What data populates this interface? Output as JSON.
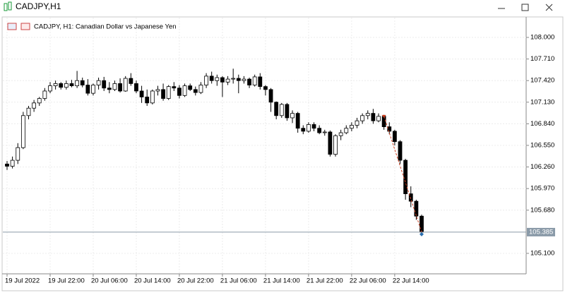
{
  "window": {
    "title": "CADJPY,H1"
  },
  "chart_data": {
    "type": "candlestick",
    "title": "CADJPY, H1:  Canadian Dollar vs Japanese Yen",
    "categories": [
      "19 Jul 2022",
      null,
      null,
      null,
      null,
      null,
      null,
      null,
      "19 Jul 22:00",
      null,
      null,
      null,
      null,
      null,
      null,
      null,
      "20 Jul 06:00",
      null,
      null,
      null,
      null,
      null,
      null,
      null,
      "20 Jul 14:00",
      null,
      null,
      null,
      null,
      null,
      null,
      null,
      "20 Jul 22:00",
      null,
      null,
      null,
      null,
      null,
      null,
      null,
      "21 Jul 06:00",
      null,
      null,
      null,
      null,
      null,
      null,
      null,
      "21 Jul 14:00",
      null,
      null,
      null,
      null,
      null,
      null,
      null,
      "21 Jul 22:00",
      null,
      null,
      null,
      null,
      null,
      null,
      null,
      "22 Jul 06:00",
      null,
      null,
      null,
      null,
      null,
      null,
      null,
      "22 Jul 14:00",
      null,
      null,
      null,
      null,
      null
    ],
    "open": [
      106.3,
      106.27,
      106.35,
      106.52,
      106.95,
      107.05,
      107.12,
      107.18,
      107.28,
      107.35,
      107.38,
      107.33,
      107.38,
      107.35,
      107.42,
      107.36,
      107.25,
      107.36,
      107.42,
      107.32,
      107.3,
      107.38,
      107.28,
      107.45,
      107.38,
      107.28,
      107.2,
      107.12,
      107.28,
      107.3,
      107.18,
      107.34,
      107.32,
      107.22,
      107.35,
      107.3,
      107.26,
      107.36,
      107.48,
      107.42,
      107.46,
      107.4,
      107.44,
      107.45,
      107.42,
      107.44,
      107.36,
      107.47,
      107.34,
      107.3,
      107.13,
      106.95,
      107.1,
      106.92,
      106.98,
      106.78,
      106.74,
      106.83,
      106.78,
      106.72,
      106.73,
      106.43,
      106.68,
      106.72,
      106.78,
      106.82,
      106.88,
      106.95,
      106.98,
      106.88,
      106.94,
      106.8,
      106.74,
      106.6,
      106.35,
      105.9,
      105.8,
      105.6
    ],
    "high": [
      106.34,
      106.4,
      106.58,
      107.0,
      107.08,
      107.16,
      107.2,
      107.32,
      107.4,
      107.42,
      107.4,
      107.42,
      107.43,
      107.55,
      107.46,
      107.44,
      107.38,
      107.46,
      107.47,
      107.4,
      107.42,
      107.45,
      107.48,
      107.52,
      107.42,
      107.35,
      107.3,
      107.3,
      107.35,
      107.38,
      107.36,
      107.4,
      107.36,
      107.38,
      107.38,
      107.34,
      107.4,
      107.52,
      107.54,
      107.5,
      107.48,
      107.48,
      107.58,
      107.5,
      107.48,
      107.46,
      107.5,
      107.52,
      107.36,
      107.32,
      107.14,
      107.12,
      107.12,
      107.02,
      107.0,
      106.82,
      106.86,
      106.86,
      106.82,
      106.76,
      106.75,
      106.7,
      106.76,
      106.82,
      106.86,
      106.92,
      106.98,
      107.02,
      107.04,
      106.98,
      106.96,
      106.86,
      106.76,
      106.62,
      106.37,
      106.0,
      105.82,
      105.62
    ],
    "low": [
      106.22,
      106.24,
      106.3,
      106.5,
      106.9,
      107.0,
      107.08,
      107.15,
      107.25,
      107.3,
      107.3,
      107.3,
      107.33,
      107.32,
      107.33,
      107.22,
      107.22,
      107.3,
      107.28,
      107.25,
      107.28,
      107.26,
      107.27,
      107.35,
      107.25,
      107.12,
      107.08,
      107.1,
      107.22,
      107.15,
      107.16,
      107.28,
      107.18,
      107.2,
      107.28,
      107.22,
      107.24,
      107.32,
      107.38,
      107.35,
      107.2,
      107.36,
      107.38,
      107.25,
      107.38,
      107.32,
      107.34,
      107.3,
      107.22,
      107.0,
      106.9,
      106.92,
      106.88,
      106.85,
      106.72,
      106.7,
      106.72,
      106.74,
      106.7,
      106.68,
      106.4,
      106.4,
      106.62,
      106.7,
      106.74,
      106.78,
      106.84,
      106.9,
      106.84,
      106.86,
      106.76,
      106.7,
      106.55,
      106.3,
      105.82,
      105.72,
      105.55,
      105.36
    ],
    "close": [
      106.27,
      106.35,
      106.52,
      106.95,
      107.05,
      107.12,
      107.18,
      107.28,
      107.35,
      107.38,
      107.33,
      107.38,
      107.35,
      107.42,
      107.36,
      107.25,
      107.36,
      107.42,
      107.32,
      107.3,
      107.38,
      107.28,
      107.45,
      107.38,
      107.28,
      107.2,
      107.12,
      107.28,
      107.3,
      107.18,
      107.34,
      107.32,
      107.22,
      107.35,
      107.3,
      107.26,
      107.36,
      107.48,
      107.42,
      107.46,
      107.4,
      107.44,
      107.45,
      107.42,
      107.44,
      107.36,
      107.47,
      107.34,
      107.3,
      107.13,
      106.95,
      107.1,
      106.92,
      106.98,
      106.78,
      106.74,
      106.83,
      106.78,
      106.72,
      106.73,
      106.43,
      106.68,
      106.72,
      106.78,
      106.82,
      106.88,
      106.95,
      106.98,
      106.88,
      106.94,
      106.8,
      106.74,
      106.6,
      106.35,
      105.9,
      105.8,
      105.6,
      105.385
    ],
    "ylim": [
      104.825,
      108.218
    ],
    "yticks": [
      {
        "value": 105.1,
        "label": "105.100"
      },
      {
        "value": 105.68,
        "label": "105.680"
      },
      {
        "value": 105.97,
        "label": "105.970"
      },
      {
        "value": 106.26,
        "label": "106.260"
      },
      {
        "value": 106.55,
        "label": "106.550"
      },
      {
        "value": 106.84,
        "label": "106.840"
      },
      {
        "value": 107.13,
        "label": "107.130"
      },
      {
        "value": 107.42,
        "label": "107.420"
      },
      {
        "value": 107.71,
        "label": "107.710"
      },
      {
        "value": 108,
        "label": "108.000"
      }
    ],
    "last_price": 105.385,
    "grid": true,
    "up_color": "#ffffff",
    "down_color": "#000000",
    "outline_color": "#000000"
  }
}
